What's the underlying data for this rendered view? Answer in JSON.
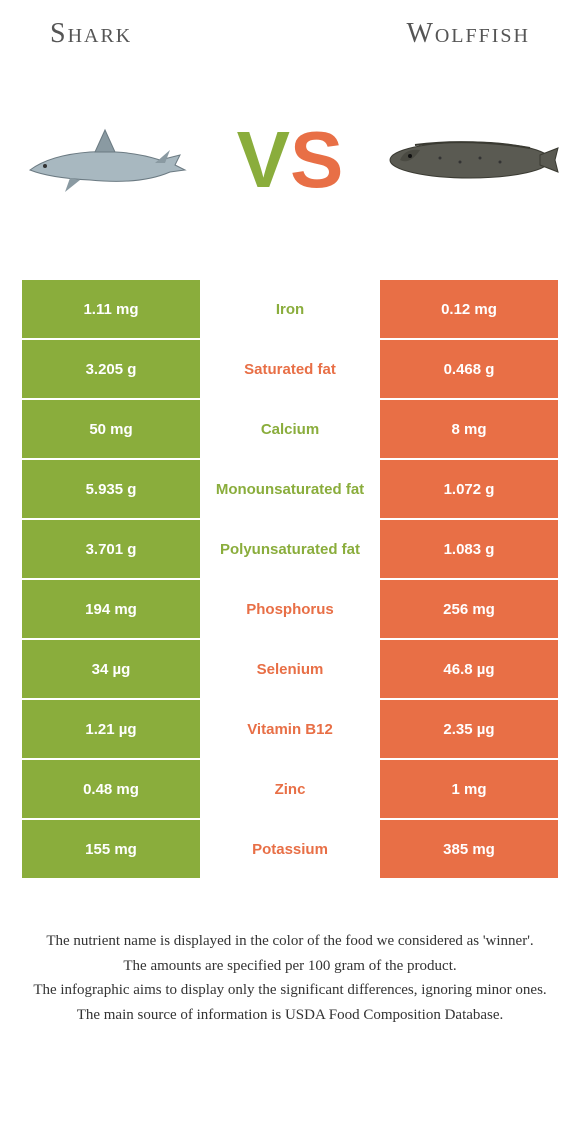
{
  "header": {
    "left": "Shark",
    "right": "Wolffish"
  },
  "vs": {
    "v": "V",
    "s": "S"
  },
  "colors": {
    "green": "#8aad3c",
    "orange": "#e86f46"
  },
  "rows": [
    {
      "left": "1.11 mg",
      "mid": "Iron",
      "right": "0.12 mg",
      "winner": "left"
    },
    {
      "left": "3.205 g",
      "mid": "Saturated fat",
      "right": "0.468 g",
      "winner": "right"
    },
    {
      "left": "50 mg",
      "mid": "Calcium",
      "right": "8 mg",
      "winner": "left"
    },
    {
      "left": "5.935 g",
      "mid": "Monounsaturated fat",
      "right": "1.072 g",
      "winner": "left"
    },
    {
      "left": "3.701 g",
      "mid": "Polyunsaturated fat",
      "right": "1.083 g",
      "winner": "left"
    },
    {
      "left": "194 mg",
      "mid": "Phosphorus",
      "right": "256 mg",
      "winner": "right"
    },
    {
      "left": "34 µg",
      "mid": "Selenium",
      "right": "46.8 µg",
      "winner": "right"
    },
    {
      "left": "1.21 µg",
      "mid": "Vitamin B12",
      "right": "2.35 µg",
      "winner": "right"
    },
    {
      "left": "0.48 mg",
      "mid": "Zinc",
      "right": "1 mg",
      "winner": "right"
    },
    {
      "left": "155 mg",
      "mid": "Potassium",
      "right": "385 mg",
      "winner": "right"
    }
  ],
  "footnotes": [
    "The nutrient name is displayed in the color of the food we considered as 'winner'.",
    "The amounts are specified per 100 gram of the product.",
    "The infographic aims to display only the significant differences, ignoring minor ones.",
    "The main source of information is USDA Food Composition Database."
  ]
}
